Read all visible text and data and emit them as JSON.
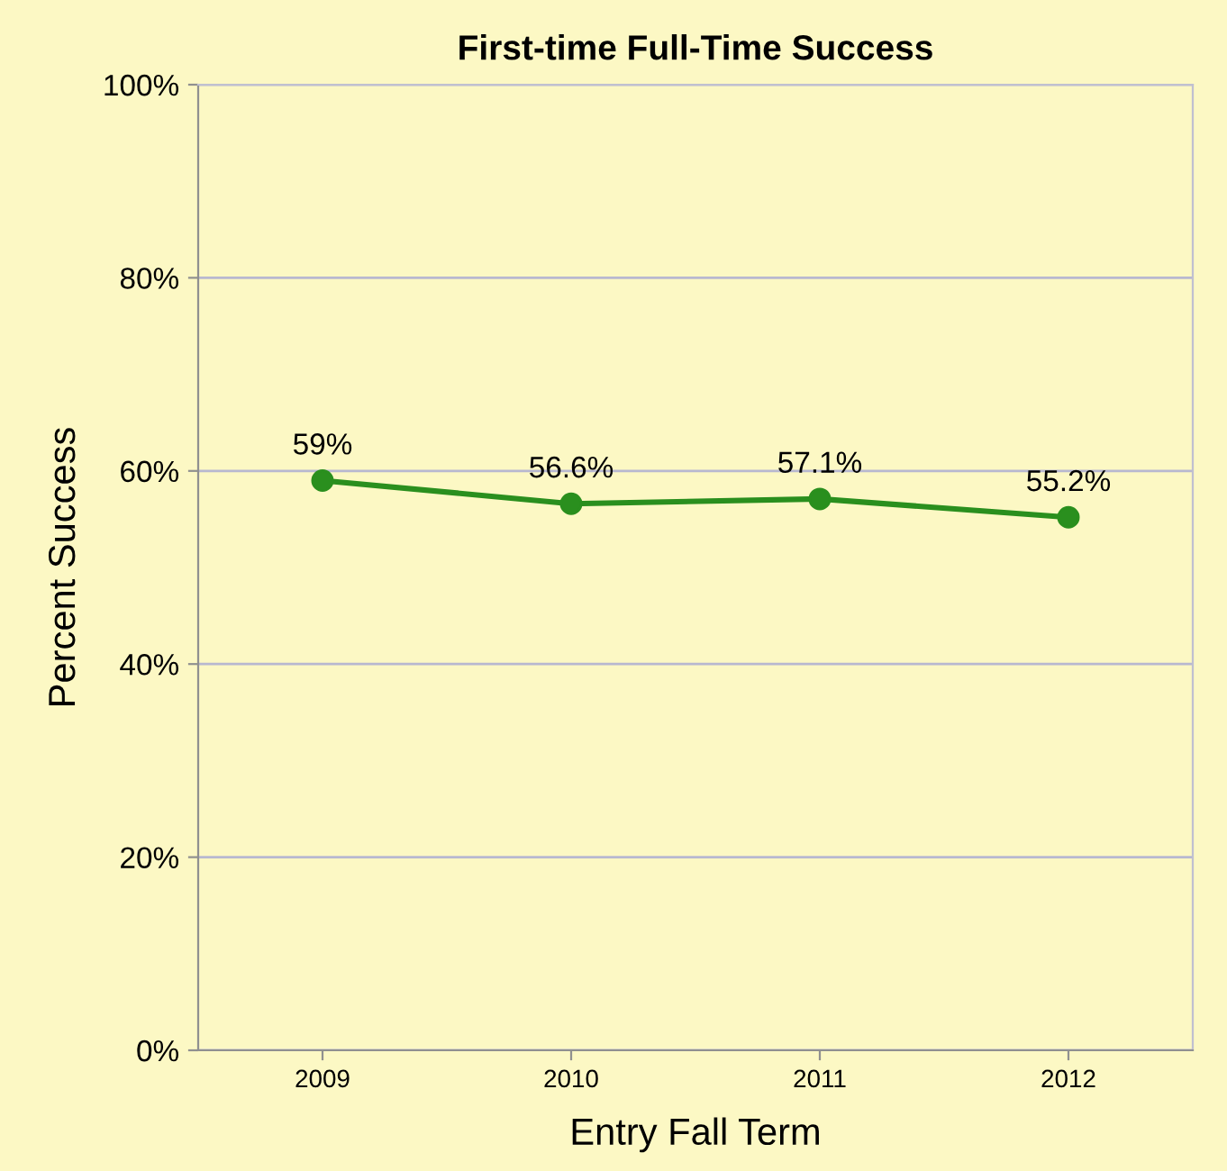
{
  "chart_data": {
    "type": "line",
    "title": "First-time Full-Time Success",
    "xlabel": "Entry Fall Term",
    "ylabel": "Percent Success",
    "categories": [
      "2009",
      "2010",
      "2011",
      "2012"
    ],
    "series": [
      {
        "color": "#2a8f1e",
        "values": [
          59,
          56.6,
          57.1,
          55.2
        ],
        "value_labels": [
          "59%",
          "56.6%",
          "57.1%",
          "55.2%"
        ]
      }
    ],
    "ylim": [
      0,
      100
    ],
    "yticks": [
      {
        "value": 0,
        "label": "0%"
      },
      {
        "value": 20,
        "label": "20%"
      },
      {
        "value": 40,
        "label": "40%"
      },
      {
        "value": 60,
        "label": "60%"
      },
      {
        "value": 80,
        "label": "80%"
      },
      {
        "value": 100,
        "label": "100%"
      }
    ],
    "grid": "y",
    "marker": "circle",
    "line_style": "solid"
  }
}
